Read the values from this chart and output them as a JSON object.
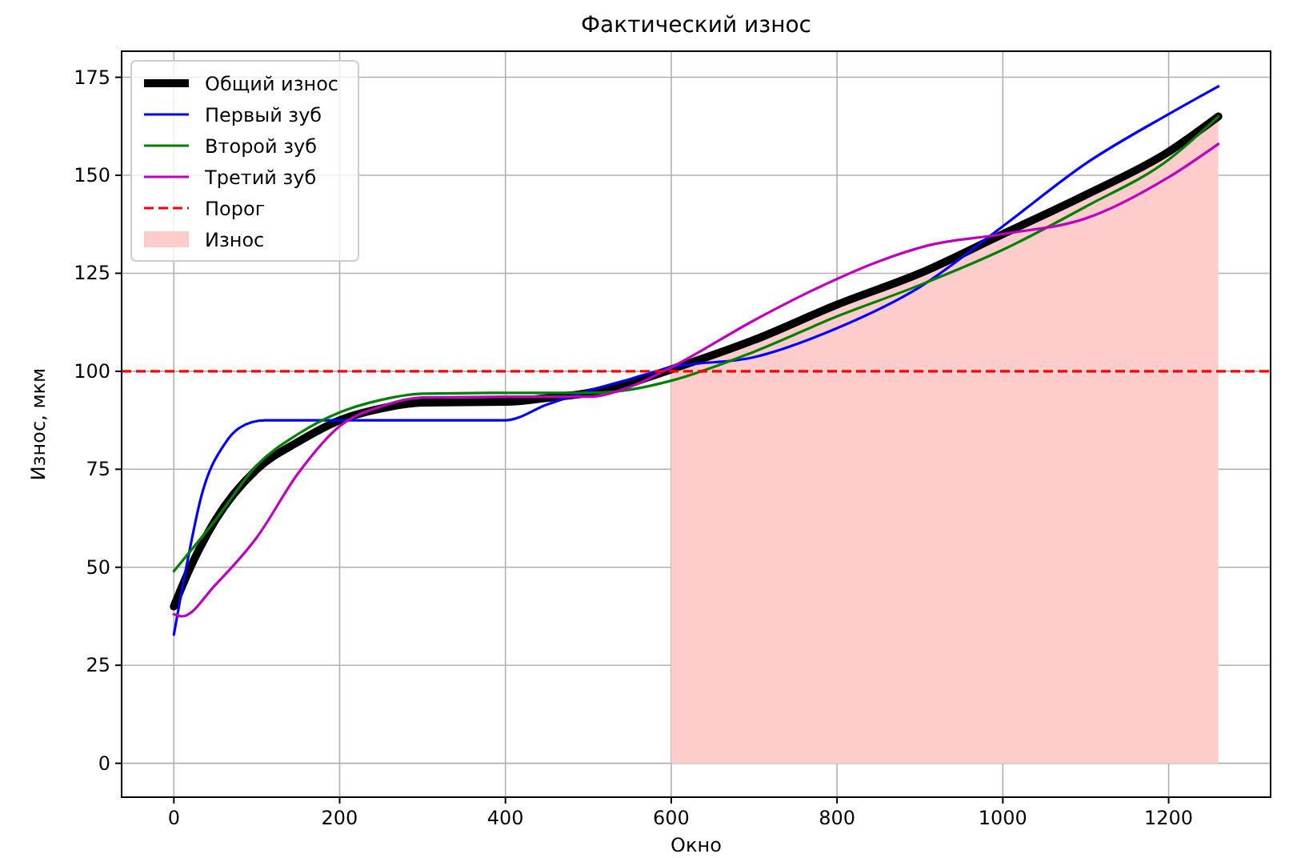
{
  "chart_data": {
    "type": "line",
    "title": "Фактический износ",
    "xlabel": "Окно",
    "ylabel": "Износ, мкм",
    "xlim": [
      -63,
      1323
    ],
    "ylim": [
      -8.65,
      181.65
    ],
    "xticks": [
      0,
      200,
      400,
      600,
      800,
      1000,
      1200
    ],
    "yticks": [
      0,
      25,
      50,
      75,
      100,
      125,
      150,
      175
    ],
    "grid": true,
    "legend": "top left",
    "series": [
      {
        "name": "Общий износ",
        "color": "#000000",
        "x": [
          0,
          20,
          50,
          100,
          150,
          200,
          250,
          300,
          400,
          450,
          500,
          550,
          600,
          700,
          800,
          900,
          1000,
          1100,
          1200,
          1260
        ],
        "values": [
          40,
          50,
          62,
          75,
          82,
          87.5,
          90.5,
          92,
          92.2,
          93.2,
          94.5,
          97,
          100.5,
          108,
          117,
          125,
          135,
          145,
          156,
          165
        ]
      },
      {
        "name": "Первый зуб",
        "color": "#0000ff",
        "x": [
          0,
          15,
          33,
          63,
          94,
          110,
          400,
          450,
          500,
          550,
          600,
          700,
          800,
          900,
          1000,
          1100,
          1200,
          1260
        ],
        "values": [
          32.8,
          50,
          68,
          82,
          87,
          87.5,
          87.5,
          91.5,
          95,
          98,
          101,
          103.6,
          111,
          121.5,
          137,
          153,
          165.6,
          172.7
        ]
      },
      {
        "name": "Второй зуб",
        "color": "#008000",
        "x": [
          0,
          50,
          100,
          150,
          200,
          250,
          300,
          400,
          500,
          550,
          600,
          700,
          800,
          900,
          1000,
          1100,
          1200,
          1260
        ],
        "values": [
          49,
          62,
          76,
          84,
          89.5,
          92.7,
          94.3,
          94.5,
          94.5,
          95.3,
          97.6,
          105,
          114,
          122,
          131,
          142,
          154,
          165
        ]
      },
      {
        "name": "Третий зуб",
        "color": "#bf00bf",
        "x": [
          0,
          10,
          50,
          100,
          150,
          200,
          250,
          300,
          400,
          500,
          550,
          600,
          700,
          774,
          850,
          908,
          1000,
          1100,
          1200,
          1260
        ],
        "values": [
          38,
          37.5,
          45.5,
          57.6,
          74,
          86,
          91,
          93.3,
          93.5,
          93.5,
          96,
          101,
          113,
          121,
          128,
          132,
          135,
          139,
          149.5,
          158
        ]
      },
      {
        "name": "Износ",
        "type": "area",
        "color": "#ffcccc",
        "x": [
          600,
          700,
          800,
          900,
          1000,
          1100,
          1200,
          1260
        ],
        "values": [
          100.5,
          108,
          117,
          125,
          135,
          145,
          156,
          165
        ]
      }
    ],
    "ref_lines": [
      {
        "axis": "y",
        "value": 100,
        "label": "Порог",
        "color": "#ff0000",
        "line_style": "dashed"
      }
    ]
  }
}
